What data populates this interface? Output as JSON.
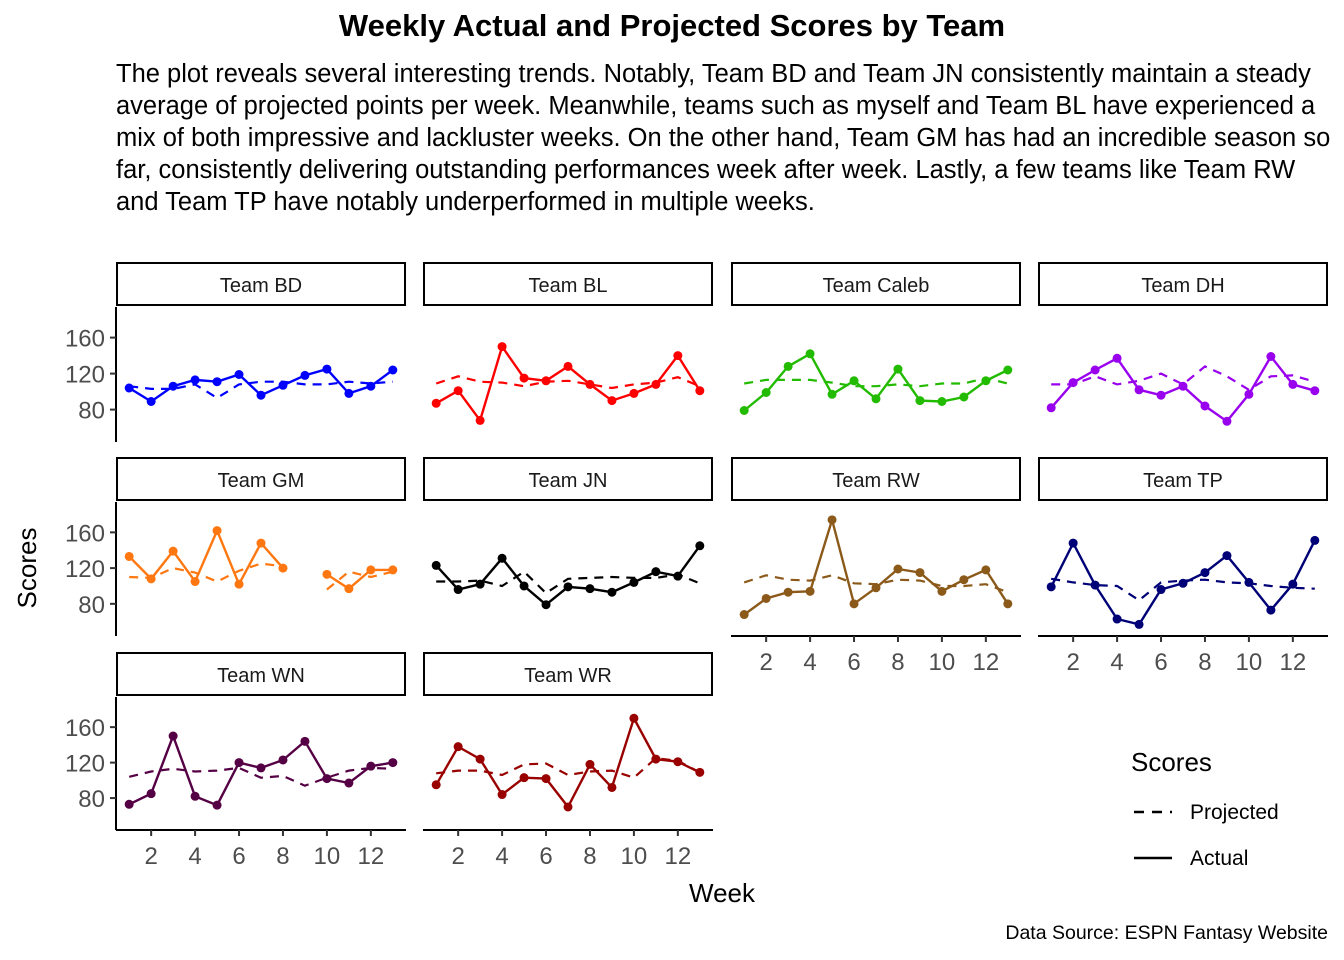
{
  "title": "Weekly Actual and Projected Scores by Team",
  "subtitle": "The plot reveals several interesting trends. Notably, Team BD and Team JN consistently maintain a steady average of projected points per week. Meanwhile, teams such as myself and Team BL have experienced a mix of both impressive and lackluster weeks. On the other hand, Team GM has had an incredible season so far, consistently delivering outstanding performances week after week. Lastly, a few teams like Team RW and Team TP have notably underperformed in multiple weeks.",
  "caption": "Data Source: ESPN Fantasy Website",
  "chart_data": {
    "type": "line",
    "title": "Weekly Actual and Projected Scores by Team",
    "xlabel": "Week",
    "ylabel": "Scores",
    "x": [
      1,
      2,
      3,
      4,
      5,
      6,
      7,
      8,
      9,
      10,
      11,
      12,
      13
    ],
    "x_ticks": [
      2,
      4,
      6,
      8,
      10,
      12
    ],
    "y_ticks": [
      80,
      120,
      160
    ],
    "xlim": [
      0.4,
      13.6
    ],
    "ylim": [
      44,
      194
    ],
    "legend": {
      "title": "Scores",
      "position": "right",
      "entries": [
        {
          "label": "Projected",
          "linetype": "dashed"
        },
        {
          "label": "Actual",
          "linetype": "solid"
        }
      ]
    },
    "facets": [
      {
        "team": "Team BD",
        "color": "#0000ff",
        "actual": [
          104,
          89,
          106,
          113,
          111,
          119,
          96,
          107,
          118,
          125,
          98,
          106,
          124
        ],
        "projected": [
          106,
          103,
          103,
          108,
          93,
          108,
          111,
          111,
          108,
          108,
          111,
          109,
          111
        ]
      },
      {
        "team": "Team BL",
        "color": "#ff0000",
        "actual": [
          87,
          101,
          68,
          150,
          115,
          112,
          128,
          108,
          90,
          98,
          108,
          140,
          101
        ],
        "projected": [
          109,
          117,
          111,
          110,
          106,
          111,
          112,
          108,
          104,
          108,
          110,
          116,
          106
        ]
      },
      {
        "team": "Team Caleb",
        "color": "#22bb00",
        "actual": [
          79,
          99,
          128,
          142,
          97,
          112,
          92,
          125,
          90,
          89,
          94,
          112,
          124
        ],
        "projected": [
          109,
          113,
          113,
          113,
          110,
          106,
          106,
          108,
          106,
          109,
          109,
          115,
          109
        ]
      },
      {
        "team": "Team DH",
        "color": "#9900ee",
        "actual": [
          82,
          110,
          124,
          137,
          102,
          96,
          106,
          84,
          67,
          97,
          139,
          108,
          101
        ],
        "projected": [
          108,
          108,
          117,
          108,
          112,
          120,
          108,
          128,
          117,
          102,
          117,
          118,
          111
        ]
      },
      {
        "team": "Team GM",
        "color": "#ff7711",
        "actual": [
          133,
          108,
          139,
          105,
          162,
          102,
          148,
          120,
          null,
          113,
          97,
          118,
          118
        ],
        "projected": [
          110,
          109,
          120,
          115,
          105,
          117,
          125,
          122,
          null,
          96,
          116,
          110,
          116
        ]
      },
      {
        "team": "Team JN",
        "color": "#000000",
        "actual": [
          123,
          96,
          102,
          131,
          100,
          79,
          99,
          97,
          93,
          104,
          116,
          111,
          145
        ],
        "projected": [
          105,
          105,
          106,
          100,
          116,
          92,
          108,
          109,
          110,
          109,
          109,
          113,
          103
        ]
      },
      {
        "team": "Team RW",
        "color": "#8b5a1a",
        "actual": [
          68,
          86,
          93,
          94,
          174,
          80,
          98,
          119,
          115,
          94,
          107,
          118,
          80
        ],
        "projected": [
          104,
          112,
          107,
          106,
          112,
          103,
          102,
          107,
          106,
          100,
          100,
          102,
          93
        ]
      },
      {
        "team": "Team TP",
        "color": "#000077",
        "actual": [
          99,
          148,
          101,
          63,
          57,
          96,
          103,
          115,
          134,
          104,
          73,
          102,
          151
        ],
        "projected": [
          108,
          104,
          101,
          100,
          84,
          104,
          106,
          107,
          104,
          103,
          100,
          98,
          97
        ]
      },
      {
        "team": "Team WN",
        "color": "#550044",
        "actual": [
          73,
          85,
          150,
          82,
          72,
          120,
          114,
          123,
          144,
          102,
          97,
          116,
          120
        ],
        "projected": [
          104,
          110,
          113,
          110,
          111,
          114,
          103,
          105,
          94,
          103,
          111,
          114,
          113
        ]
      },
      {
        "team": "Team WR",
        "color": "#990000",
        "actual": [
          95,
          138,
          124,
          84,
          103,
          102,
          70,
          118,
          92,
          170,
          124,
          121,
          109
        ],
        "projected": [
          108,
          111,
          111,
          106,
          118,
          119,
          106,
          110,
          111,
          103,
          125,
          122,
          109
        ]
      }
    ]
  }
}
